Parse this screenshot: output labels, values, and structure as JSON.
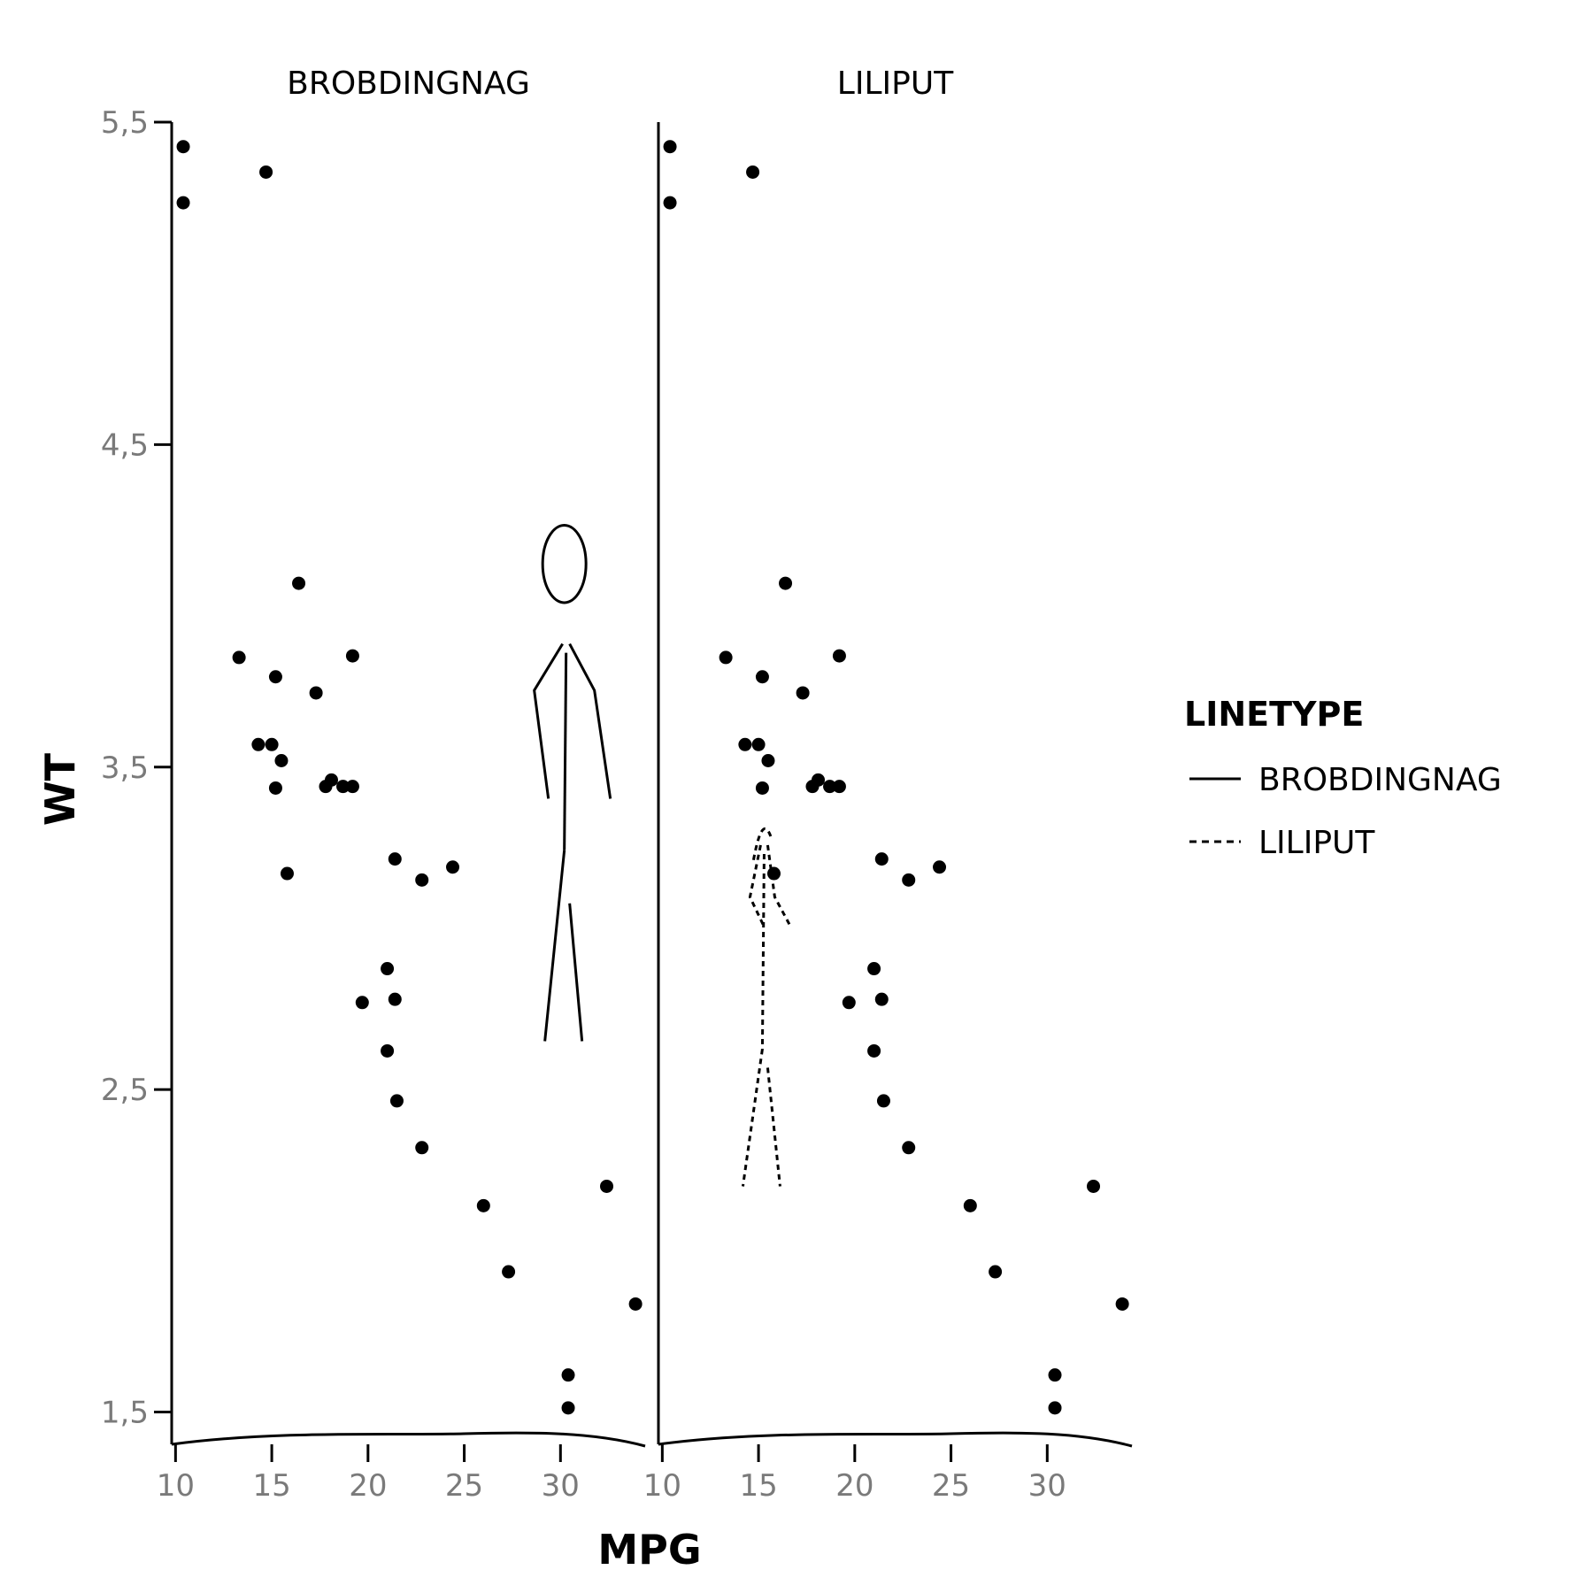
{
  "chart_data": {
    "type": "scatter",
    "xlabel": "MPG",
    "ylabel": "WT",
    "xlim": [
      9.8,
      34.4
    ],
    "ylim": [
      1.4,
      5.5
    ],
    "x_ticks": [
      "10",
      "15",
      "20",
      "25",
      "30"
    ],
    "y_ticks": [
      "1,5",
      "2,5",
      "3,5",
      "4,5",
      "5,5"
    ],
    "x_tick_values": [
      10,
      15,
      20,
      25,
      30
    ],
    "y_tick_values": [
      1.5,
      2.5,
      3.5,
      4.5,
      5.5
    ],
    "panels": [
      "BROBDINGNAG",
      "LILIPUT"
    ],
    "points": [
      [
        10.4,
        5.424
      ],
      [
        10.4,
        5.25
      ],
      [
        14.7,
        5.345
      ],
      [
        16.4,
        4.07
      ],
      [
        13.3,
        3.84
      ],
      [
        19.2,
        3.845
      ],
      [
        15.2,
        3.78
      ],
      [
        17.3,
        3.73
      ],
      [
        14.3,
        3.57
      ],
      [
        15.0,
        3.57
      ],
      [
        15.5,
        3.52
      ],
      [
        15.2,
        3.435
      ],
      [
        17.8,
        3.44
      ],
      [
        18.1,
        3.46
      ],
      [
        18.7,
        3.44
      ],
      [
        19.2,
        3.44
      ],
      [
        15.8,
        3.17
      ],
      [
        21.4,
        3.215
      ],
      [
        22.8,
        3.15
      ],
      [
        24.4,
        3.19
      ],
      [
        21.0,
        2.875
      ],
      [
        21.4,
        2.78
      ],
      [
        19.7,
        2.77
      ],
      [
        21.0,
        2.62
      ],
      [
        21.5,
        2.465
      ],
      [
        22.8,
        2.32
      ],
      [
        26.0,
        2.14
      ],
      [
        32.4,
        2.2
      ],
      [
        27.3,
        1.935
      ],
      [
        33.9,
        1.835
      ],
      [
        30.4,
        1.615
      ],
      [
        30.4,
        1.513
      ]
    ],
    "legend": {
      "title": "LINETYPE",
      "entries": [
        {
          "label": "BROBDINGNAG",
          "dash": "solid"
        },
        {
          "label": "LILIPUT",
          "dash": "dashed"
        }
      ]
    },
    "figures": [
      {
        "panel": 0,
        "dash": "solid",
        "x_center": 30.2,
        "y_head": 4.05,
        "y_feet": 2.65,
        "scale": 1.0
      },
      {
        "panel": 1,
        "dash": "dashed",
        "x_center": 15.2,
        "y_head": 3.35,
        "y_feet": 2.2,
        "scale": 0.35
      }
    ]
  }
}
